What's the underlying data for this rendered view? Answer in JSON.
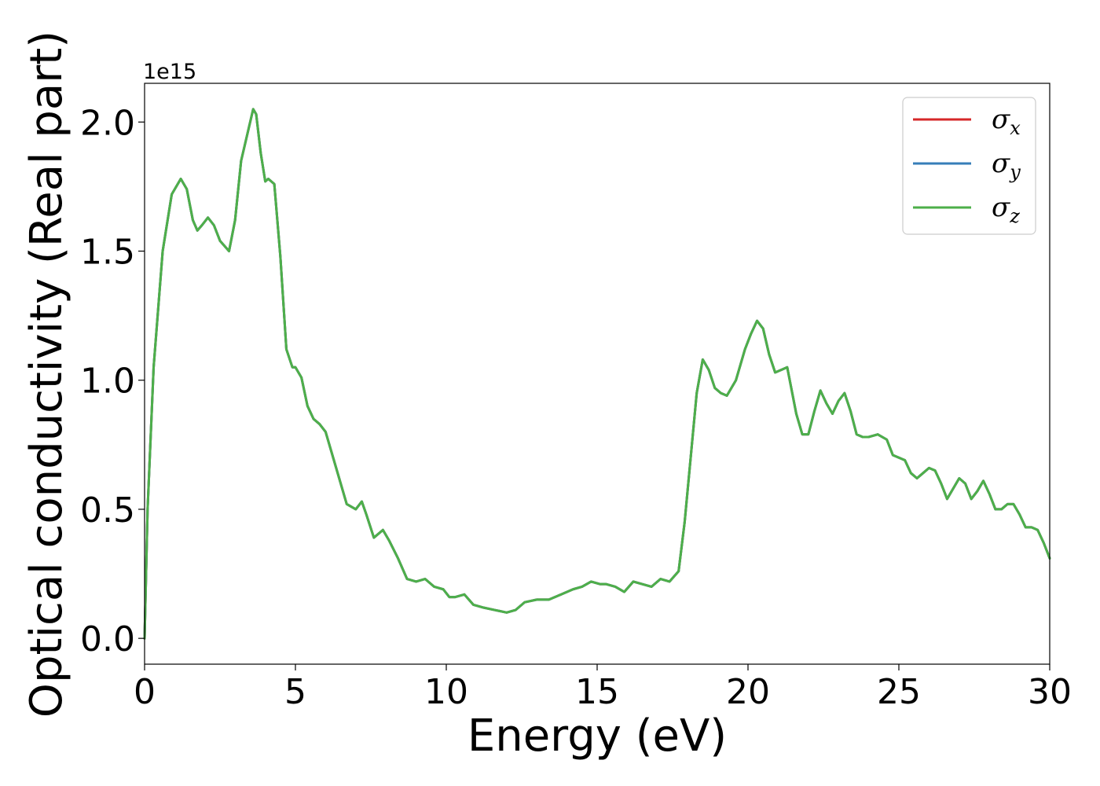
{
  "chart_data": {
    "type": "line",
    "xlabel": "Energy (eV)",
    "ylabel": "Optical conductivity (Real part)",
    "y_offset_text": "1e15",
    "xlim": [
      0,
      30
    ],
    "ylim": [
      -0.1,
      2.15
    ],
    "xticks": [
      0,
      5,
      10,
      15,
      20,
      25,
      30
    ],
    "xtick_labels": [
      "0",
      "5",
      "10",
      "15",
      "20",
      "25",
      "30"
    ],
    "yticks": [
      0.0,
      0.5,
      1.0,
      1.5,
      2.0
    ],
    "ytick_labels": [
      "0.0",
      "0.5",
      "1.0",
      "1.5",
      "2.0"
    ],
    "grid": false,
    "legend_position": "top-right",
    "x": [
      0,
      0.1,
      0.3,
      0.6,
      0.9,
      1.2,
      1.4,
      1.6,
      1.75,
      1.9,
      2.1,
      2.3,
      2.5,
      2.8,
      3.0,
      3.2,
      3.4,
      3.6,
      3.7,
      3.85,
      4.0,
      4.1,
      4.3,
      4.5,
      4.7,
      4.9,
      5.0,
      5.2,
      5.4,
      5.6,
      5.8,
      6.0,
      6.2,
      6.4,
      6.7,
      7.0,
      7.2,
      7.35,
      7.6,
      7.9,
      8.1,
      8.4,
      8.7,
      9.0,
      9.3,
      9.6,
      9.9,
      10.1,
      10.3,
      10.6,
      10.9,
      11.2,
      11.6,
      12.0,
      12.3,
      12.6,
      13.0,
      13.4,
      13.8,
      14.2,
      14.5,
      14.8,
      15.1,
      15.3,
      15.6,
      15.9,
      16.2,
      16.5,
      16.8,
      17.1,
      17.4,
      17.7,
      17.9,
      18.1,
      18.3,
      18.5,
      18.7,
      18.9,
      19.1,
      19.3,
      19.6,
      19.9,
      20.1,
      20.3,
      20.5,
      20.7,
      20.9,
      21.1,
      21.3,
      21.4,
      21.6,
      21.8,
      22.0,
      22.2,
      22.4,
      22.6,
      22.8,
      23.0,
      23.2,
      23.4,
      23.6,
      23.8,
      24.0,
      24.3,
      24.6,
      24.8,
      25.0,
      25.2,
      25.4,
      25.6,
      25.8,
      26.0,
      26.2,
      26.4,
      26.6,
      26.8,
      27.0,
      27.2,
      27.4,
      27.6,
      27.8,
      28.0,
      28.2,
      28.4,
      28.6,
      28.8,
      29.0,
      29.2,
      29.4,
      29.6,
      29.8,
      30.0
    ],
    "series": [
      {
        "name": "σx",
        "color": "#d62728",
        "values": [
          0.0,
          0.5,
          1.05,
          1.5,
          1.72,
          1.78,
          1.74,
          1.62,
          1.58,
          1.6,
          1.63,
          1.6,
          1.54,
          1.5,
          1.62,
          1.85,
          1.95,
          2.05,
          2.03,
          1.88,
          1.77,
          1.78,
          1.76,
          1.48,
          1.12,
          1.05,
          1.05,
          1.01,
          0.9,
          0.85,
          0.83,
          0.8,
          0.72,
          0.64,
          0.52,
          0.5,
          0.53,
          0.48,
          0.39,
          0.42,
          0.38,
          0.31,
          0.23,
          0.22,
          0.23,
          0.2,
          0.19,
          0.16,
          0.16,
          0.17,
          0.13,
          0.12,
          0.11,
          0.1,
          0.11,
          0.14,
          0.15,
          0.15,
          0.17,
          0.19,
          0.2,
          0.22,
          0.21,
          0.21,
          0.2,
          0.18,
          0.22,
          0.21,
          0.2,
          0.23,
          0.22,
          0.26,
          0.45,
          0.7,
          0.95,
          1.08,
          1.04,
          0.97,
          0.95,
          0.94,
          1.0,
          1.12,
          1.18,
          1.23,
          1.2,
          1.1,
          1.03,
          1.04,
          1.05,
          0.99,
          0.87,
          0.79,
          0.79,
          0.88,
          0.96,
          0.91,
          0.87,
          0.92,
          0.95,
          0.88,
          0.79,
          0.78,
          0.78,
          0.79,
          0.77,
          0.71,
          0.7,
          0.69,
          0.64,
          0.62,
          0.64,
          0.66,
          0.65,
          0.6,
          0.54,
          0.58,
          0.62,
          0.6,
          0.54,
          0.57,
          0.61,
          0.56,
          0.5,
          0.5,
          0.52,
          0.52,
          0.48,
          0.43,
          0.43,
          0.42,
          0.37,
          0.31
        ]
      },
      {
        "name": "σy",
        "color": "#377eb8",
        "values": [
          0.0,
          0.5,
          1.05,
          1.5,
          1.72,
          1.78,
          1.74,
          1.62,
          1.58,
          1.6,
          1.63,
          1.6,
          1.54,
          1.5,
          1.62,
          1.85,
          1.95,
          2.05,
          2.03,
          1.88,
          1.77,
          1.78,
          1.76,
          1.48,
          1.12,
          1.05,
          1.05,
          1.01,
          0.9,
          0.85,
          0.83,
          0.8,
          0.72,
          0.64,
          0.52,
          0.5,
          0.53,
          0.48,
          0.39,
          0.42,
          0.38,
          0.31,
          0.23,
          0.22,
          0.23,
          0.2,
          0.19,
          0.16,
          0.16,
          0.17,
          0.13,
          0.12,
          0.11,
          0.1,
          0.11,
          0.14,
          0.15,
          0.15,
          0.17,
          0.19,
          0.2,
          0.22,
          0.21,
          0.21,
          0.2,
          0.18,
          0.22,
          0.21,
          0.2,
          0.23,
          0.22,
          0.26,
          0.45,
          0.7,
          0.95,
          1.08,
          1.04,
          0.97,
          0.95,
          0.94,
          1.0,
          1.12,
          1.18,
          1.23,
          1.2,
          1.1,
          1.03,
          1.04,
          1.05,
          0.99,
          0.87,
          0.79,
          0.79,
          0.88,
          0.96,
          0.91,
          0.87,
          0.92,
          0.95,
          0.88,
          0.79,
          0.78,
          0.78,
          0.79,
          0.77,
          0.71,
          0.7,
          0.69,
          0.64,
          0.62,
          0.64,
          0.66,
          0.65,
          0.6,
          0.54,
          0.58,
          0.62,
          0.6,
          0.54,
          0.57,
          0.61,
          0.56,
          0.5,
          0.5,
          0.52,
          0.52,
          0.48,
          0.43,
          0.43,
          0.42,
          0.37,
          0.31
        ]
      },
      {
        "name": "σz",
        "color": "#4daf4a",
        "values": [
          0.0,
          0.5,
          1.05,
          1.5,
          1.72,
          1.78,
          1.74,
          1.62,
          1.58,
          1.6,
          1.63,
          1.6,
          1.54,
          1.5,
          1.62,
          1.85,
          1.95,
          2.05,
          2.03,
          1.88,
          1.77,
          1.78,
          1.76,
          1.48,
          1.12,
          1.05,
          1.05,
          1.01,
          0.9,
          0.85,
          0.83,
          0.8,
          0.72,
          0.64,
          0.52,
          0.5,
          0.53,
          0.48,
          0.39,
          0.42,
          0.38,
          0.31,
          0.23,
          0.22,
          0.23,
          0.2,
          0.19,
          0.16,
          0.16,
          0.17,
          0.13,
          0.12,
          0.11,
          0.1,
          0.11,
          0.14,
          0.15,
          0.15,
          0.17,
          0.19,
          0.2,
          0.22,
          0.21,
          0.21,
          0.2,
          0.18,
          0.22,
          0.21,
          0.2,
          0.23,
          0.22,
          0.26,
          0.45,
          0.7,
          0.95,
          1.08,
          1.04,
          0.97,
          0.95,
          0.94,
          1.0,
          1.12,
          1.18,
          1.23,
          1.2,
          1.1,
          1.03,
          1.04,
          1.05,
          0.99,
          0.87,
          0.79,
          0.79,
          0.88,
          0.96,
          0.91,
          0.87,
          0.92,
          0.95,
          0.88,
          0.79,
          0.78,
          0.78,
          0.79,
          0.77,
          0.71,
          0.7,
          0.69,
          0.64,
          0.62,
          0.64,
          0.66,
          0.65,
          0.6,
          0.54,
          0.58,
          0.62,
          0.6,
          0.54,
          0.57,
          0.61,
          0.56,
          0.5,
          0.5,
          0.52,
          0.52,
          0.48,
          0.43,
          0.43,
          0.42,
          0.37,
          0.31
        ]
      }
    ],
    "legend": [
      {
        "symbol": "σ",
        "subscript": "x",
        "color": "#d62728"
      },
      {
        "symbol": "σ",
        "subscript": "y",
        "color": "#377eb8"
      },
      {
        "symbol": "σ",
        "subscript": "z",
        "color": "#4daf4a"
      }
    ]
  }
}
